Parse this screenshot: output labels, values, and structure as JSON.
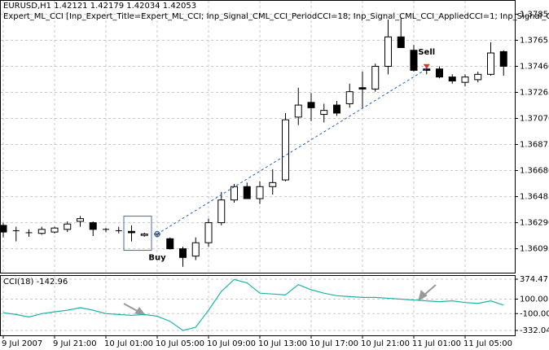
{
  "chart_data": [
    {
      "type": "candlestick",
      "title": "EURUSD,H1  1.42121 1.42179 1.42034 1.42053",
      "subtitle": "Expert_ML_CCI [Inp_Expert_Title=Expert_ML_CCI; Inp_Signal_CML_CCI_PeriodCCI=18; Inp_Signal_CML_CCI_AppliedCCI=1; Inp_Signal_CML_C",
      "color": "#000000",
      "open": [
        1.3627,
        1.3623,
        1.36215,
        1.3621,
        1.3622,
        1.3624,
        1.363,
        1.3629,
        1.3624,
        1.36225,
        1.36225,
        1.36195,
        1.362,
        1.3617,
        1.36095,
        1.3604,
        1.3614,
        1.3629,
        1.3646,
        1.3656,
        1.3647,
        1.3656,
        1.3661,
        1.3708,
        1.3719,
        1.371,
        1.3717,
        1.3718,
        1.373,
        1.3729,
        1.3746,
        1.3768,
        1.3758,
        1.3744,
        1.3744,
        1.3738,
        1.3734,
        1.3736,
        1.374,
        1.3757
      ],
      "high": [
        1.3629,
        1.3626,
        1.3624,
        1.3626,
        1.3626,
        1.363,
        1.3634,
        1.363,
        1.3625,
        1.3626,
        1.3627,
        1.36215,
        1.3621,
        1.3618,
        1.3611,
        1.3618,
        1.3632,
        1.3652,
        1.3658,
        1.3659,
        1.366,
        1.3669,
        1.3711,
        1.373,
        1.3726,
        1.3718,
        1.372,
        1.3733,
        1.3742,
        1.3748,
        1.3781,
        1.3782,
        1.3762,
        1.3746,
        1.3746,
        1.374,
        1.374,
        1.3742,
        1.3764,
        1.3758
      ],
      "low": [
        1.3618,
        1.3615,
        1.36185,
        1.362,
        1.3621,
        1.3622,
        1.3626,
        1.3619,
        1.3622,
        1.3621,
        1.3615,
        1.36185,
        1.3618,
        1.3609,
        1.3596,
        1.3601,
        1.3611,
        1.3627,
        1.3644,
        1.3648,
        1.3643,
        1.365,
        1.366,
        1.3702,
        1.3705,
        1.3704,
        1.3709,
        1.3715,
        1.3715,
        1.3727,
        1.374,
        1.376,
        1.3742,
        1.374,
        1.3737,
        1.3733,
        1.3731,
        1.3734,
        1.3739,
        1.3739
      ],
      "close": [
        1.3622,
        1.3623,
        1.36215,
        1.3624,
        1.3625,
        1.3628,
        1.3632,
        1.3624,
        1.36235,
        1.3623,
        1.36215,
        1.36205,
        1.36205,
        1.36095,
        1.3603,
        1.3614,
        1.3629,
        1.3646,
        1.3656,
        1.3647,
        1.3656,
        1.3659,
        1.3706,
        1.3717,
        1.3715,
        1.3713,
        1.3711,
        1.3727,
        1.3729,
        1.3746,
        1.3768,
        1.376,
        1.3743,
        1.3743,
        1.3738,
        1.3735,
        1.3738,
        1.374,
        1.3756,
        1.3746
      ],
      "ylim": [
        1.3591,
        1.3795
      ],
      "yticks": [
        {
          "value": 1.3785,
          "label": "1.37850"
        },
        {
          "value": 1.37655,
          "label": "1.37655"
        },
        {
          "value": 1.3746,
          "label": "1.37460"
        },
        {
          "value": 1.37265,
          "label": "1.37265"
        },
        {
          "value": 1.3707,
          "label": "1.37070"
        },
        {
          "value": 1.36875,
          "label": "1.36875"
        },
        {
          "value": 1.3668,
          "label": "1.36680"
        },
        {
          "value": 1.36485,
          "label": "1.36485"
        },
        {
          "value": 1.3629,
          "label": "1.36290"
        },
        {
          "value": 1.36095,
          "label": "1.36095"
        }
      ],
      "grid": true,
      "annotations": [
        {
          "text": "Buy",
          "x": 12,
          "y": 1.36205,
          "color": "#4a6fa5"
        },
        {
          "text": "Sell",
          "x": 33,
          "y": 1.3744,
          "color": "#d9342b"
        }
      ]
    },
    {
      "type": "line",
      "title": "CCI(18) -142.96",
      "categories": [
        "9 Jul 2007",
        null,
        null,
        null,
        "9 Jul 21:00",
        null,
        null,
        null,
        "10 Jul 01:00",
        null,
        null,
        null,
        "10 Jul 05:00",
        null,
        null,
        null,
        "10 Jul 09:00",
        null,
        null,
        null,
        "10 Jul 13:00",
        null,
        null,
        null,
        "10 Jul 17:00",
        null,
        null,
        null,
        "10 Jul 21:00",
        null,
        null,
        null,
        "11 Jul 01:00",
        null,
        null,
        null,
        "11 Jul 05:00",
        null,
        null,
        null
      ],
      "series": [
        {
          "name": "CCI(18)",
          "color": "#20b2aa",
          "values": [
            -88,
            -112,
            -147,
            -100,
            -76,
            -53,
            -18,
            -53,
            -100,
            -112,
            -124,
            -112,
            -135,
            -206,
            -332,
            -288,
            -53,
            206,
            371,
            324,
            182,
            171,
            159,
            300,
            229,
            182,
            147,
            135,
            124,
            124,
            112,
            100,
            88,
            76,
            65,
            76,
            53,
            41,
            76,
            18
          ]
        }
      ],
      "ylim": [
        -400,
        420
      ],
      "yticks": [
        {
          "value": 374.47,
          "label": "374.47"
        },
        {
          "value": 100,
          "label": "100.00"
        },
        {
          "value": -100,
          "label": "-100.00"
        },
        {
          "value": -332.04,
          "label": "-332.04"
        }
      ],
      "grid": true
    }
  ]
}
